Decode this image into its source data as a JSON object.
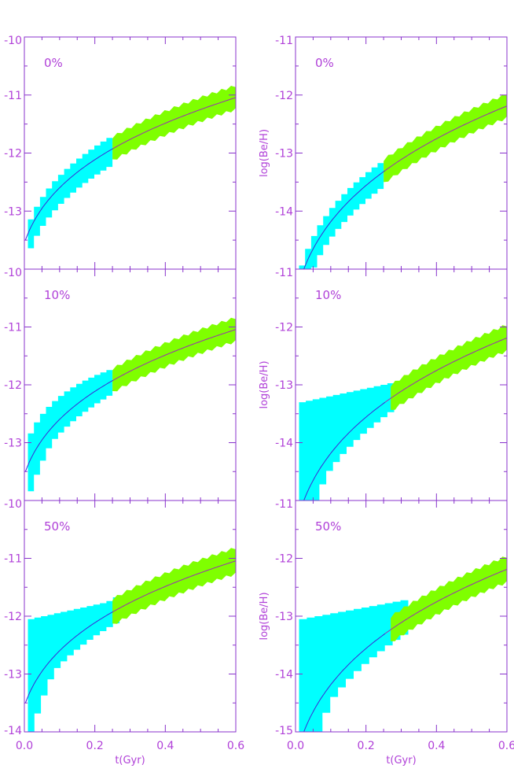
{
  "colors": {
    "axis": "#8833cc",
    "text": "#b040d8",
    "curve_all": "#3a2bd6",
    "curve_late": "#9b2fb0",
    "band_all": "#00ffff",
    "band_late": "#7fff00"
  },
  "xlabel": "t(Gyr)",
  "ylabel": "log(Be/H)",
  "x_ticks": [
    "0.0",
    "0.2",
    "0.4",
    "0.6"
  ],
  "chart_data": [
    {
      "type": "area",
      "panel": "left-top",
      "label": "0%",
      "xlim": [
        0,
        0.6
      ],
      "ylim": [
        -14,
        -10
      ],
      "y_ticks": [
        "-10",
        "-11",
        "-12",
        "-13"
      ],
      "curve": {
        "t0": 0.003,
        "y0": -13.5,
        "a": 4.8,
        "tau": 0.03,
        "p": 0.29
      },
      "band_all": {
        "x": [
          0.01,
          0.25
        ],
        "lower": 0.25,
        "upper": 0.25,
        "upper_start": 0.25,
        "lower_start": 0.25
      },
      "band_late": {
        "x": [
          0.25,
          0.6
        ],
        "half_width": 0.18
      }
    },
    {
      "type": "area",
      "panel": "right-top",
      "label": "0%",
      "xlim": [
        0,
        0.6
      ],
      "ylim": [
        -15,
        -11
      ],
      "y_ticks": [
        "-11",
        "-12",
        "-13",
        "-14"
      ],
      "curve": {
        "t0": 0.007,
        "y0": -15.3,
        "a": 6.1,
        "tau": 0.03,
        "p": 0.29
      },
      "band_all": {
        "x": [
          0.01,
          0.25
        ],
        "lower": 0.22,
        "upper": 0.22,
        "upper_start": 0.3,
        "lower_start": 0.3
      },
      "band_late": {
        "x": [
          0.25,
          0.6
        ],
        "half_width": 0.18
      }
    },
    {
      "type": "area",
      "panel": "left-middle",
      "label": "10%",
      "xlim": [
        0,
        0.6
      ],
      "ylim": [
        -14,
        -10
      ],
      "y_ticks": [
        "-10",
        "-11",
        "-12",
        "-13"
      ],
      "curve": {
        "t0": 0.003,
        "y0": -13.5,
        "a": 4.8,
        "tau": 0.03,
        "p": 0.29
      },
      "band_all": {
        "x": [
          0.01,
          0.25
        ],
        "lower": 0.2,
        "upper": 0.22,
        "upper_start": 0.55,
        "lower_start": 0.45
      },
      "band_late": {
        "x": [
          0.25,
          0.6
        ],
        "half_width": 0.18
      }
    },
    {
      "type": "area",
      "panel": "right-middle",
      "label": "10%",
      "xlim": [
        0,
        0.6
      ],
      "ylim": [
        -15,
        -11
      ],
      "y_ticks": [
        "-11",
        "-12",
        "-13",
        "-14"
      ],
      "curve": {
        "t0": 0.007,
        "y0": -15.3,
        "a": 6.1,
        "tau": 0.03,
        "p": 0.29
      },
      "band_all": {
        "x": [
          0.01,
          0.28
        ],
        "lower": 0.2,
        "upper": 0.3,
        "flat_upper": -13.3,
        "lower_start": 0.6
      },
      "band_late": {
        "x": [
          0.27,
          0.6
        ],
        "half_width": 0.2
      }
    },
    {
      "type": "area",
      "panel": "left-bottom",
      "label": "50%",
      "xlim": [
        0,
        0.6
      ],
      "ylim": [
        -14,
        -10
      ],
      "y_ticks": [
        "-10",
        "-11",
        "-12",
        "-13",
        "-14"
      ],
      "curve": {
        "t0": 0.003,
        "y0": -13.5,
        "a": 4.8,
        "tau": 0.03,
        "p": 0.29
      },
      "band_all": {
        "x": [
          0.01,
          0.27
        ],
        "lower": 0.2,
        "upper": 0.25,
        "flat_upper": -12.05,
        "lower_start": 0.65
      },
      "band_late": {
        "x": [
          0.25,
          0.6
        ],
        "half_width": 0.2
      }
    },
    {
      "type": "area",
      "panel": "right-bottom",
      "label": "50%",
      "xlim": [
        0,
        0.6
      ],
      "ylim": [
        -15,
        -11
      ],
      "y_ticks": [
        "-11",
        "-12",
        "-13",
        "-14",
        "-15"
      ],
      "curve": {
        "t0": 0.007,
        "y0": -15.3,
        "a": 6.1,
        "tau": 0.03,
        "p": 0.29
      },
      "band_all": {
        "x": [
          0.01,
          0.32
        ],
        "lower": 0.2,
        "upper": 0.3,
        "flat_upper": -13.05,
        "lower_start": 0.8
      },
      "band_late": {
        "x": [
          0.27,
          0.6
        ],
        "half_width": 0.2
      }
    }
  ]
}
